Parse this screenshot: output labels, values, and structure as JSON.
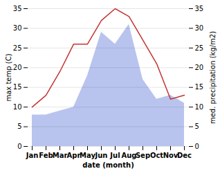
{
  "chart_data": {
    "type": "line",
    "categories": [
      "Jan",
      "Feb",
      "Mar",
      "Apr",
      "May",
      "Jun",
      "Jul",
      "Aug",
      "Sep",
      "Oct",
      "Nov",
      "Dec"
    ],
    "series": [
      {
        "type": "area",
        "axis": "y2",
        "color": "#b8c4ee",
        "values": [
          8,
          8,
          9,
          10,
          18,
          29,
          26,
          31,
          17,
          12,
          13,
          11
        ]
      },
      {
        "type": "line",
        "color": "#c43333",
        "values": [
          10,
          13,
          19,
          26,
          26,
          32,
          35,
          33,
          27,
          21,
          12,
          13
        ]
      }
    ],
    "xlabel": "date (month)",
    "ylabel": "max temp (C)",
    "y2label": "med. precipitation (kg/m2)",
    "ylim": [
      0,
      35
    ],
    "yticks": [
      0,
      5,
      10,
      15,
      20,
      25,
      30,
      35
    ],
    "y2lim": [
      0,
      35
    ],
    "y2ticks": [
      0,
      5,
      10,
      15,
      20,
      25,
      30,
      35
    ],
    "grid": true
  }
}
